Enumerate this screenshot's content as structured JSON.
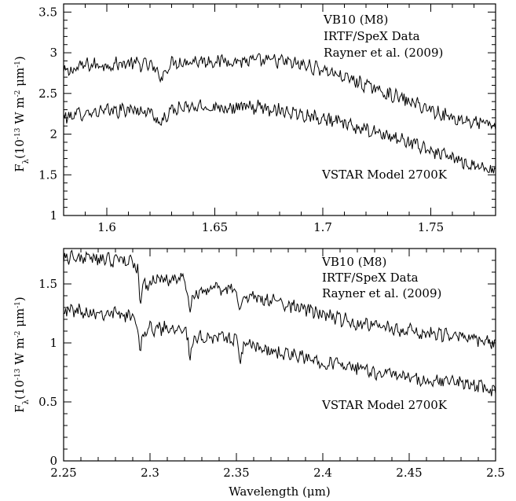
{
  "figure": {
    "xlabel": "Wavelength (μm)",
    "ylabel_main": "F",
    "ylabel_sub": "λ",
    "ylabel_rest": "(10",
    "ylabel_exp1": "-13",
    "ylabel_mid": " W m",
    "ylabel_exp2": "-2",
    "ylabel_unit": " μm",
    "ylabel_exp3": "-1",
    "ylabel_close": ")"
  },
  "colors": {
    "line": "#000000",
    "frame": "#000000",
    "background": "#ffffff"
  },
  "chart_data": [
    {
      "type": "line",
      "title": "",
      "xlabel": "",
      "ylabel": "Fλ(10^-13 W m^-2 μm^-1)",
      "xlim": [
        1.58,
        1.78
      ],
      "ylim": [
        1.0,
        3.6
      ],
      "xticks": [
        1.6,
        1.65,
        1.7,
        1.75
      ],
      "xtick_labels": [
        "1.6",
        "1.65",
        "1.7",
        "1.75"
      ],
      "yticks": [
        1,
        1.5,
        2,
        2.5,
        3,
        3.5
      ],
      "ytick_labels": [
        "1",
        "1.5",
        "2",
        "2.5",
        "3",
        "3.5"
      ],
      "annotations": [
        "VB10 (M8)",
        "IRTF/SpeX Data",
        "Rayner et al. (2009)"
      ],
      "model_label": "VSTAR Model 2700K",
      "series": [
        {
          "x": [
            1.58,
            1.59,
            1.6,
            1.61,
            1.62,
            1.625,
            1.63,
            1.64,
            1.65,
            1.66,
            1.67,
            1.68,
            1.69,
            1.7,
            1.71,
            1.72,
            1.73,
            1.74,
            1.75,
            1.76,
            1.77,
            1.78
          ],
          "values": [
            2.75,
            2.85,
            2.85,
            2.87,
            2.85,
            2.7,
            2.88,
            2.9,
            2.9,
            2.9,
            2.9,
            2.9,
            2.85,
            2.8,
            2.7,
            2.6,
            2.5,
            2.4,
            2.3,
            2.2,
            2.15,
            2.1
          ]
        },
        {
          "x": [
            1.58,
            1.59,
            1.6,
            1.61,
            1.62,
            1.625,
            1.63,
            1.64,
            1.65,
            1.66,
            1.67,
            1.68,
            1.69,
            1.7,
            1.71,
            1.72,
            1.73,
            1.74,
            1.75,
            1.76,
            1.77,
            1.78
          ],
          "values": [
            2.2,
            2.27,
            2.28,
            2.3,
            2.28,
            2.12,
            2.3,
            2.33,
            2.33,
            2.33,
            2.33,
            2.3,
            2.25,
            2.2,
            2.12,
            2.05,
            1.98,
            1.9,
            1.8,
            1.7,
            1.62,
            1.55
          ]
        }
      ]
    },
    {
      "type": "line",
      "title": "",
      "xlabel": "Wavelength (μm)",
      "ylabel": "Fλ(10^-13 W m^-2 μm^-1)",
      "xlim": [
        2.25,
        2.5
      ],
      "ylim": [
        0,
        1.8
      ],
      "xticks": [
        2.25,
        2.3,
        2.35,
        2.4,
        2.45,
        2.5
      ],
      "xtick_labels": [
        "2.25",
        "2.3",
        "2.35",
        "2.4",
        "2.45",
        "2.5"
      ],
      "yticks": [
        0,
        0.5,
        1,
        1.5
      ],
      "ytick_labels": [
        "0",
        "0.5",
        "1",
        "1.5"
      ],
      "annotations": [
        "VB10 (M8)",
        "IRTF/SpeX Data",
        "Rayner et al. (2009)"
      ],
      "model_label": "VSTAR Model 2700K",
      "series": [
        {
          "x": [
            2.25,
            2.26,
            2.27,
            2.28,
            2.29,
            2.293,
            2.294,
            2.296,
            2.3,
            2.31,
            2.32,
            2.322,
            2.323,
            2.325,
            2.33,
            2.34,
            2.35,
            2.352,
            2.353,
            2.355,
            2.36,
            2.37,
            2.38,
            2.39,
            2.4,
            2.41,
            2.42,
            2.43,
            2.44,
            2.45,
            2.46,
            2.47,
            2.48,
            2.49,
            2.5
          ],
          "values": [
            1.73,
            1.72,
            1.71,
            1.7,
            1.7,
            1.6,
            1.35,
            1.48,
            1.52,
            1.54,
            1.55,
            1.4,
            1.28,
            1.4,
            1.45,
            1.45,
            1.46,
            1.25,
            1.33,
            1.38,
            1.38,
            1.36,
            1.32,
            1.28,
            1.24,
            1.2,
            1.17,
            1.15,
            1.12,
            1.1,
            1.08,
            1.07,
            1.05,
            1.03,
            1.0
          ]
        },
        {
          "x": [
            2.25,
            2.26,
            2.27,
            2.28,
            2.29,
            2.293,
            2.294,
            2.296,
            2.3,
            2.31,
            2.32,
            2.322,
            2.323,
            2.325,
            2.33,
            2.34,
            2.35,
            2.352,
            2.353,
            2.355,
            2.36,
            2.37,
            2.38,
            2.39,
            2.4,
            2.41,
            2.42,
            2.43,
            2.44,
            2.45,
            2.46,
            2.47,
            2.48,
            2.49,
            2.5
          ],
          "values": [
            1.28,
            1.27,
            1.26,
            1.25,
            1.22,
            1.15,
            0.95,
            1.08,
            1.12,
            1.13,
            1.14,
            1.0,
            0.88,
            1.0,
            1.05,
            1.05,
            1.03,
            0.86,
            0.92,
            0.98,
            0.97,
            0.93,
            0.9,
            0.87,
            0.84,
            0.82,
            0.78,
            0.75,
            0.74,
            0.7,
            0.66,
            0.68,
            0.66,
            0.63,
            0.6
          ]
        }
      ]
    }
  ]
}
